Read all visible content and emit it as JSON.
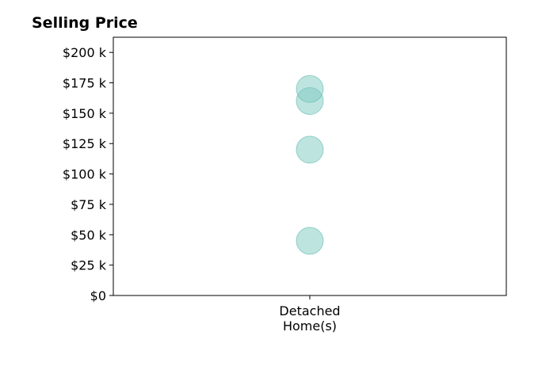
{
  "chart_data": {
    "type": "scatter",
    "title": "Selling Price",
    "xlabel": "",
    "ylabel": "",
    "categories": [
      [
        "Detached",
        "Home(s)"
      ]
    ],
    "points": [
      {
        "category": 0,
        "value": 45000
      },
      {
        "category": 0,
        "value": 120000
      },
      {
        "category": 0,
        "value": 160000
      },
      {
        "category": 0,
        "value": 170000
      }
    ],
    "ylim": [
      0,
      212500
    ],
    "yticks": [
      0,
      25000,
      50000,
      75000,
      100000,
      125000,
      150000,
      175000,
      200000
    ],
    "ytick_labels": [
      "$0",
      "$25 k",
      "$50 k",
      "$75 k",
      "$100 k",
      "$125 k",
      "$150 k",
      "$175 k",
      "$200 k"
    ],
    "marker_color": "#7ecac2",
    "marker_edge_color": "#5db9b0",
    "marker_opacity": 0.5,
    "grid": false,
    "legend": "none"
  }
}
